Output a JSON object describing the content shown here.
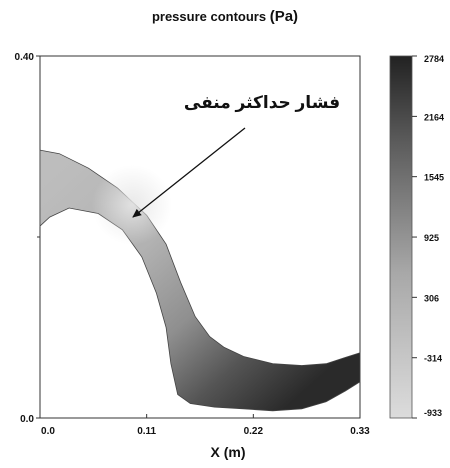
{
  "title": {
    "main": "pressure contours",
    "unit": "(Pa)"
  },
  "annotation": {
    "text": "فشار حداکثر منفی"
  },
  "chart_data": {
    "type": "heatmap",
    "title": "pressure contours (Pa)",
    "xlabel": "X (m)",
    "ylabel": "",
    "xlim": [
      0.0,
      0.33
    ],
    "ylim": [
      0.0,
      0.4
    ],
    "x_ticks": [
      0.0,
      0.11,
      0.22,
      0.33
    ],
    "x_tick_labels": [
      "0.0",
      "0.11",
      "0.22",
      "0.33"
    ],
    "y_tick_labels": [
      "0.0",
      "0.40"
    ],
    "colorbar": {
      "min": -933,
      "max": 2784,
      "ticks": [
        2784,
        2164,
        1545,
        925,
        306,
        -314,
        -933
      ],
      "tick_labels": [
        "2784",
        "2164",
        "1545",
        "925",
        "306",
        "-314",
        "-933"
      ],
      "color_low": "#dcdcdc",
      "color_high": "#222222"
    },
    "annotations": [
      {
        "text": "فشار حداکثر منفی",
        "points_to": [
          0.09,
          0.19
        ]
      }
    ],
    "domain": {
      "upper_wall": [
        [
          0.0,
          0.296
        ],
        [
          0.02,
          0.292
        ],
        [
          0.05,
          0.276
        ],
        [
          0.08,
          0.254
        ],
        [
          0.11,
          0.224
        ],
        [
          0.13,
          0.192
        ],
        [
          0.145,
          0.15
        ],
        [
          0.16,
          0.112
        ],
        [
          0.175,
          0.09
        ],
        [
          0.19,
          0.078
        ],
        [
          0.21,
          0.068
        ],
        [
          0.24,
          0.06
        ],
        [
          0.27,
          0.058
        ],
        [
          0.295,
          0.06
        ],
        [
          0.315,
          0.067
        ],
        [
          0.33,
          0.072
        ]
      ],
      "lower_wall": [
        [
          0.0,
          0.212
        ],
        [
          0.01,
          0.222
        ],
        [
          0.03,
          0.232
        ],
        [
          0.06,
          0.226
        ],
        [
          0.085,
          0.208
        ],
        [
          0.105,
          0.178
        ],
        [
          0.12,
          0.138
        ],
        [
          0.13,
          0.1
        ],
        [
          0.135,
          0.06
        ],
        [
          0.142,
          0.026
        ],
        [
          0.155,
          0.016
        ],
        [
          0.18,
          0.012
        ],
        [
          0.21,
          0.01
        ],
        [
          0.24,
          0.008
        ],
        [
          0.27,
          0.01
        ],
        [
          0.295,
          0.018
        ],
        [
          0.315,
          0.03
        ],
        [
          0.33,
          0.04
        ]
      ]
    },
    "grid": false
  }
}
